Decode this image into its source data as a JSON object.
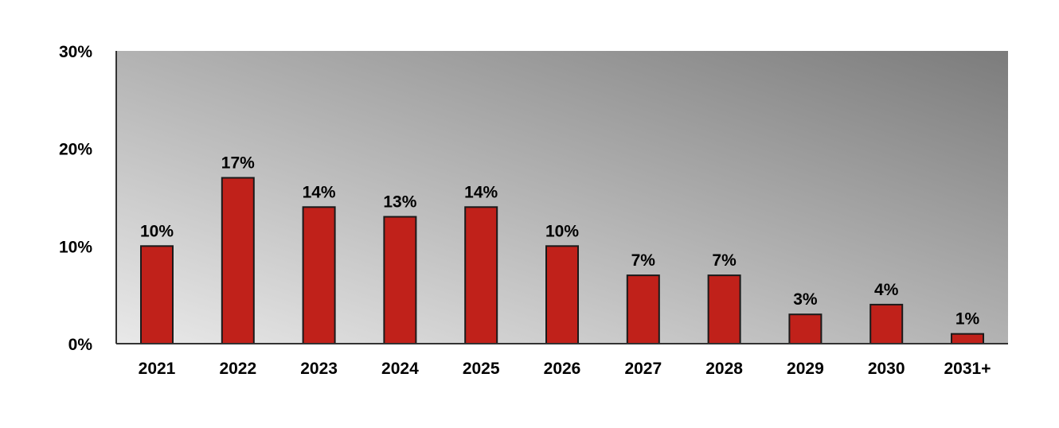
{
  "chart_data": {
    "type": "bar",
    "title": "",
    "xlabel": "",
    "ylabel": "",
    "categories": [
      "2021",
      "2022",
      "2023",
      "2024",
      "2025",
      "2026",
      "2027",
      "2028",
      "2029",
      "2030",
      "2031+"
    ],
    "values": [
      10,
      17,
      14,
      13,
      14,
      10,
      7,
      7,
      3,
      4,
      1
    ],
    "data_labels": [
      "10%",
      "17%",
      "14%",
      "13%",
      "14%",
      "10%",
      "7%",
      "7%",
      "3%",
      "4%",
      "1%"
    ],
    "ylim": [
      0,
      30
    ],
    "y_ticks": [
      0,
      10,
      20,
      30
    ],
    "y_tick_labels": [
      "0%",
      "10%",
      "20%",
      "30%"
    ],
    "grid": false,
    "legend": "none",
    "colors": {
      "bar_fill": "#c0211a",
      "bar_stroke": "#1a1a1a",
      "plot_bg_light": "#e9e9e9",
      "plot_bg_dark": "#7c7c7c",
      "axis": "#333333"
    }
  }
}
